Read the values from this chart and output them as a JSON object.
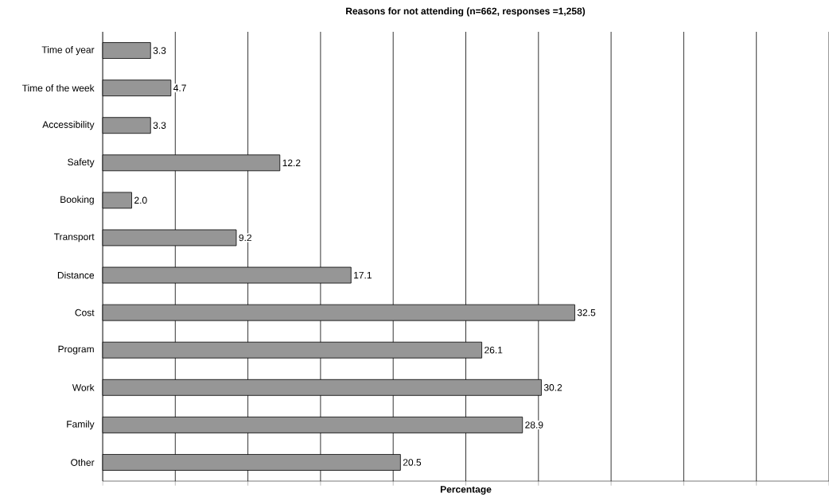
{
  "chart_data": {
    "type": "bar",
    "orientation": "horizontal",
    "title": "Reasons for not attending (n=662, responses =1,258)",
    "xlabel": "Percentage",
    "categories": [
      "Time of year",
      "Time of the week",
      "Accessibility",
      "Safety",
      "Booking",
      "Transport",
      "Distance",
      "Cost",
      "Program",
      "Work",
      "Family",
      "Other"
    ],
    "values": [
      3.3,
      4.7,
      3.3,
      12.2,
      2.0,
      9.2,
      17.1,
      32.5,
      26.1,
      30.2,
      28.9,
      20.5
    ],
    "value_labels": [
      "3.3",
      "4.7",
      "3.3",
      "12.2",
      "2.0",
      "9.2",
      "17.1",
      "32.5",
      "26.1",
      "30.2",
      "28.9",
      "20.5"
    ],
    "color": "#969696",
    "xlim": [
      0,
      50
    ],
    "xticks": [
      {
        "value": 0,
        "label": null
      },
      {
        "value": 5,
        "label": null
      },
      {
        "value": 10,
        "label": null
      },
      {
        "value": 15,
        "label": null
      },
      {
        "value": 20,
        "label": null
      },
      {
        "value": 25,
        "label": null
      },
      {
        "value": 30,
        "label": null
      },
      {
        "value": 35,
        "label": null
      },
      {
        "value": 40,
        "label": null
      },
      {
        "value": 45,
        "label": null
      },
      {
        "value": 50,
        "label": null
      }
    ],
    "grid": "x",
    "tick_labels": "y"
  }
}
